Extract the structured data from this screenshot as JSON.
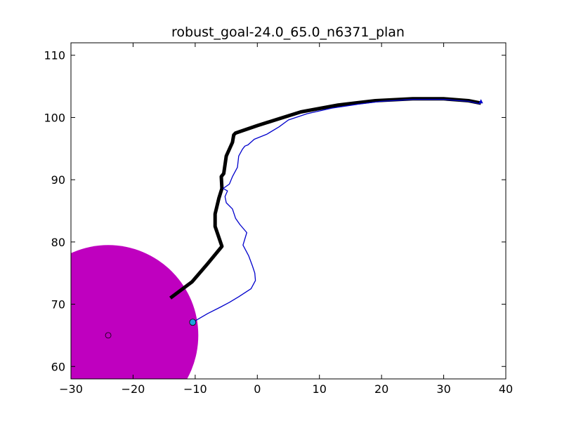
{
  "chart_data": {
    "type": "line",
    "title": "robust_goal-24.0_65.0_n6371_plan",
    "xlabel": "",
    "ylabel": "",
    "xlim": [
      -30,
      40
    ],
    "ylim": [
      58,
      112
    ],
    "x_ticks": [
      -30,
      -20,
      -10,
      0,
      10,
      20,
      30,
      40
    ],
    "y_ticks": [
      60,
      70,
      80,
      90,
      100,
      110
    ],
    "x_tick_labels": [
      "−30",
      "−20",
      "−10",
      "0",
      "10",
      "20",
      "30",
      "40"
    ],
    "y_tick_labels": [
      "60",
      "70",
      "80",
      "90",
      "100",
      "110"
    ],
    "grid": false,
    "goal_region": {
      "center": [
        -24.0,
        65.0
      ],
      "radius": 14.5,
      "color": "#bf00bf"
    },
    "goal_marker": {
      "x": -24.0,
      "y": 65.0
    },
    "start_marker": {
      "x": -10.4,
      "y": 67.1,
      "color": "#1ca3dd"
    },
    "series": [
      {
        "color": "#000000",
        "style": "thick",
        "points": [
          [
            -14.0,
            71.0
          ],
          [
            -10.5,
            73.6
          ],
          [
            -8.0,
            76.5
          ],
          [
            -5.7,
            79.3
          ],
          [
            -6.8,
            82.5
          ],
          [
            -6.8,
            84.5
          ],
          [
            -6.2,
            87.0
          ],
          [
            -5.7,
            88.6
          ],
          [
            -5.8,
            90.5
          ],
          [
            -5.4,
            91.0
          ],
          [
            -5.0,
            93.8
          ],
          [
            -4.0,
            96.0
          ],
          [
            -3.8,
            97.2
          ],
          [
            -3.5,
            97.5
          ],
          [
            0.0,
            98.7
          ],
          [
            3.5,
            99.8
          ],
          [
            7.0,
            100.9
          ],
          [
            13.0,
            102.0
          ],
          [
            19.0,
            102.7
          ],
          [
            25.0,
            103.0
          ],
          [
            30.0,
            103.0
          ],
          [
            34.0,
            102.7
          ],
          [
            36.0,
            102.3
          ]
        ]
      },
      {
        "color": "#0000cc",
        "style": "thin",
        "points": [
          [
            -10.4,
            67.1
          ],
          [
            -8.0,
            68.5
          ],
          [
            -6.0,
            69.5
          ],
          [
            -4.5,
            70.3
          ],
          [
            -3.0,
            71.2
          ],
          [
            -1.0,
            72.5
          ],
          [
            -0.3,
            73.8
          ],
          [
            -0.4,
            75.0
          ],
          [
            -0.8,
            76.2
          ],
          [
            -1.4,
            77.8
          ],
          [
            -2.3,
            79.5
          ],
          [
            -1.7,
            81.5
          ],
          [
            -2.8,
            82.8
          ],
          [
            -3.5,
            83.8
          ],
          [
            -4.0,
            85.3
          ],
          [
            -5.0,
            86.3
          ],
          [
            -5.2,
            87.3
          ],
          [
            -4.8,
            88.2
          ],
          [
            -5.5,
            88.6
          ],
          [
            -4.5,
            89.3
          ],
          [
            -4.0,
            90.5
          ],
          [
            -3.2,
            92.0
          ],
          [
            -3.0,
            93.8
          ],
          [
            -2.4,
            94.9
          ],
          [
            -2.0,
            95.4
          ],
          [
            -1.5,
            95.6
          ],
          [
            -0.5,
            96.5
          ],
          [
            1.5,
            97.3
          ],
          [
            3.5,
            98.5
          ],
          [
            5.0,
            99.6
          ],
          [
            8.0,
            100.6
          ],
          [
            12.0,
            101.5
          ],
          [
            16.0,
            102.1
          ],
          [
            20.0,
            102.6
          ],
          [
            25.0,
            102.9
          ],
          [
            30.0,
            102.9
          ],
          [
            34.0,
            102.6
          ],
          [
            35.8,
            102.2
          ],
          [
            35.8,
            102.6
          ]
        ]
      }
    ],
    "end_marker": {
      "x": 36.0,
      "y": 102.5,
      "color": "#0000cc"
    }
  }
}
